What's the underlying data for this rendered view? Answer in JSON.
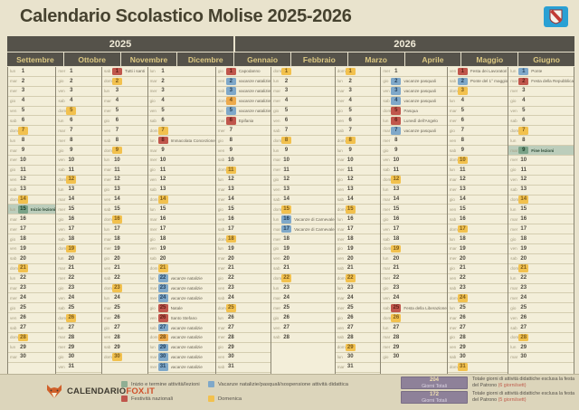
{
  "header": {
    "title": "Calendario Scolastico Molise 2025-2026",
    "region_logo_icon": "molise-crest-icon"
  },
  "colors": {
    "start_end": "#8fae93",
    "vacation": "#7fa8c9",
    "holiday": "#c0564c",
    "sunday": "#f2c14e",
    "vacation_sunday": "#edaa4c",
    "header_bar": "#55524a",
    "totals_box": "#8e8199",
    "accent_red": "#bf5a4a",
    "logo_blue": "#2aa0d4",
    "fox_orange": "#d0502a"
  },
  "calendar": {
    "dow_abbrev": [
      "lun",
      "mar",
      "mer",
      "gio",
      "ven",
      "sab",
      "dom"
    ],
    "years": [
      {
        "label": "2025",
        "span": 4
      },
      {
        "label": "2026",
        "span": 6
      }
    ],
    "months": [
      {
        "name": "Settembre",
        "year": "2025",
        "days": 30,
        "first_dow": 0,
        "events": [
          {
            "day": 15,
            "type": "start",
            "label": "Inizio lezioni"
          }
        ]
      },
      {
        "name": "Ottobre",
        "year": "2025",
        "days": 31,
        "first_dow": 2,
        "events": []
      },
      {
        "name": "Novembre",
        "year": "2025",
        "days": 30,
        "first_dow": 5,
        "events": [
          {
            "day": 1,
            "type": "holiday",
            "label": "Tutti i santi"
          }
        ]
      },
      {
        "name": "Dicembre",
        "year": "2025",
        "days": 31,
        "first_dow": 0,
        "events": [
          {
            "day": 8,
            "type": "holiday",
            "label": "Immacolata Concezione"
          },
          {
            "day": 22,
            "type": "vacation",
            "label": "vacanze natalizie"
          },
          {
            "day": 23,
            "type": "vacation",
            "label": "vacanze natalizie"
          },
          {
            "day": 24,
            "type": "vacation",
            "label": "vacanze natalizie"
          },
          {
            "day": 25,
            "type": "holiday",
            "label": "Natale"
          },
          {
            "day": 26,
            "type": "holiday",
            "label": "Santo Stefano"
          },
          {
            "day": 27,
            "type": "vacation",
            "label": "vacanze natalizie"
          },
          {
            "day": 28,
            "type": "vacation",
            "label": "vacanze natalizie"
          },
          {
            "day": 29,
            "type": "vacation",
            "label": "vacanze natalizie"
          },
          {
            "day": 30,
            "type": "vacation",
            "label": "vacanze natalizie"
          },
          {
            "day": 31,
            "type": "vacation",
            "label": "vacanze natalizie"
          }
        ]
      },
      {
        "name": "Gennaio",
        "year": "2026",
        "days": 31,
        "first_dow": 3,
        "events": [
          {
            "day": 1,
            "type": "holiday",
            "label": "Capodanno"
          },
          {
            "day": 2,
            "type": "vacation",
            "label": "vacanze natalizie"
          },
          {
            "day": 3,
            "type": "vacation",
            "label": "vacanze natalizie"
          },
          {
            "day": 4,
            "type": "vacation",
            "label": "vacanze natalizie"
          },
          {
            "day": 5,
            "type": "vacation",
            "label": "vacanze natalizie"
          },
          {
            "day": 6,
            "type": "holiday",
            "label": "Epifania"
          }
        ]
      },
      {
        "name": "Febbraio",
        "year": "2026",
        "days": 28,
        "first_dow": 6,
        "events": [
          {
            "day": 16,
            "type": "vacation",
            "label": "Vacanze di Carnevale"
          },
          {
            "day": 17,
            "type": "vacation",
            "label": "Vacanze di Carnevale"
          }
        ]
      },
      {
        "name": "Marzo",
        "year": "2026",
        "days": 31,
        "first_dow": 6,
        "events": []
      },
      {
        "name": "Aprile",
        "year": "2026",
        "days": 30,
        "first_dow": 2,
        "events": [
          {
            "day": 2,
            "type": "vacation",
            "label": "vacanze pasquali"
          },
          {
            "day": 3,
            "type": "vacation",
            "label": "vacanze pasquali"
          },
          {
            "day": 4,
            "type": "vacation",
            "label": "vacanze pasquali"
          },
          {
            "day": 5,
            "type": "holiday",
            "label": "Pasqua"
          },
          {
            "day": 6,
            "type": "holiday",
            "label": "Lunedì dell'Angelo"
          },
          {
            "day": 7,
            "type": "vacation",
            "label": "vacanze pasquali"
          },
          {
            "day": 25,
            "type": "holiday",
            "label": "Festa della Liberazione"
          }
        ]
      },
      {
        "name": "Maggio",
        "year": "2026",
        "days": 31,
        "first_dow": 4,
        "events": [
          {
            "day": 1,
            "type": "holiday",
            "label": "Festa dei Lavoratori"
          },
          {
            "day": 2,
            "type": "vacation",
            "label": "Ponte del 1° maggio"
          }
        ]
      },
      {
        "name": "Giugno",
        "year": "2026",
        "days": 30,
        "first_dow": 0,
        "events": [
          {
            "day": 1,
            "type": "vacation",
            "label": "Ponte"
          },
          {
            "day": 2,
            "type": "holiday",
            "label": "Festa della Repubblica"
          },
          {
            "day": 9,
            "type": "end",
            "label": "Fine lezioni"
          }
        ]
      }
    ]
  },
  "footer": {
    "brand": {
      "icon": "fox-icon",
      "text_dark": "CALENDARIO",
      "text_accent": "FOX.IT"
    },
    "legend": [
      {
        "color_key": "start_end",
        "label": "Inizio e termine attività/lezioni"
      },
      {
        "color_key": "vacation",
        "label": "Vacanze natalizie/pasquali/sospensione attività didattica"
      },
      {
        "color_key": "holiday",
        "label": "Festività nazionali"
      },
      {
        "color_key": "sunday",
        "label": "Domenica"
      }
    ],
    "totals": [
      {
        "value": "204",
        "unit": "Giorni Totali",
        "note": "Totale giorni di attività didattiche esclusa la festa del Patrono",
        "note_detail": "(6 giorni/sett)"
      },
      {
        "value": "172",
        "unit": "Giorni Totali",
        "note": "Totale giorni di attività didattiche esclusa la festa del Patrono",
        "note_detail": "(5 giorni/sett)"
      }
    ]
  }
}
